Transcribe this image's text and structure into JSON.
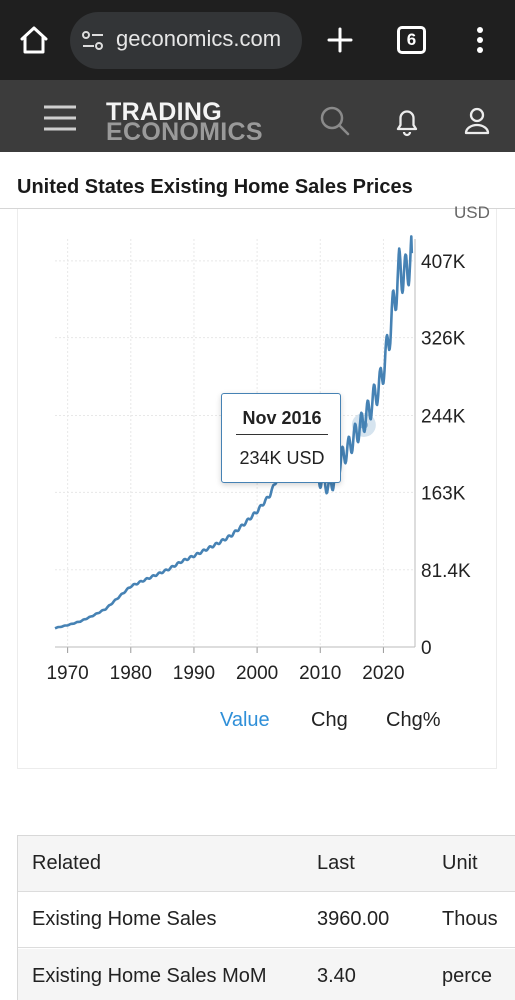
{
  "browser": {
    "url": "geconomics.com",
    "tab_count": "6"
  },
  "site": {
    "logo_top": "TRADING",
    "logo_bottom": "ECONOMICS"
  },
  "page": {
    "title": "United States Existing Home Sales Prices"
  },
  "chart_data": {
    "type": "line",
    "unit": "USD",
    "x_ticks": [
      "1970",
      "1980",
      "1990",
      "2000",
      "2010",
      "2020"
    ],
    "y_ticks": [
      "0",
      "81.4K",
      "163K",
      "244K",
      "326K",
      "407K"
    ],
    "xlim": [
      1968,
      2025
    ],
    "ylim": [
      0,
      430000
    ],
    "grid": true,
    "series": [
      {
        "color": "#4682b4",
        "x": [
          1968,
          1970,
          1972,
          1974,
          1976,
          1978,
          1980,
          1982,
          1984,
          1986,
          1988,
          1990,
          1992,
          1994,
          1996,
          1998,
          2000,
          2002,
          2004,
          2005.5,
          2006.5,
          2007.5,
          2008.5,
          2009.5,
          2010.5,
          2011.5,
          2012.5,
          2013.5,
          2014.5,
          2015.5,
          2016.5,
          2017.5,
          2018.5,
          2019.5,
          2020.5,
          2021.5,
          2022.5,
          2023.5,
          2024.5
        ],
        "y": [
          20000,
          23000,
          27000,
          33000,
          40000,
          52000,
          64000,
          70000,
          76000,
          82000,
          90000,
          96000,
          103000,
          110000,
          118000,
          130000,
          143000,
          160000,
          190000,
          222000,
          235000,
          228000,
          205000,
          180000,
          175000,
          168000,
          182000,
          200000,
          210000,
          223000,
          234000,
          246000,
          262000,
          278000,
          310000,
          355000,
          398000,
          392000,
          415000
        ]
      }
    ],
    "tooltip": {
      "date": "Nov 2016",
      "value": "234K USD",
      "x": 2016.9,
      "y": 234000
    }
  },
  "chart_tabs": [
    {
      "label": "Value",
      "active": true
    },
    {
      "label": "Chg",
      "active": false
    },
    {
      "label": "Chg%",
      "active": false
    }
  ],
  "related": {
    "headers": [
      "Related",
      "Last",
      "Unit"
    ],
    "rows": [
      {
        "name": "Existing Home Sales",
        "last": "3960.00",
        "unit": "Thous"
      },
      {
        "name": "Existing Home Sales MoM",
        "last": "3.40",
        "unit": "perce"
      }
    ]
  }
}
